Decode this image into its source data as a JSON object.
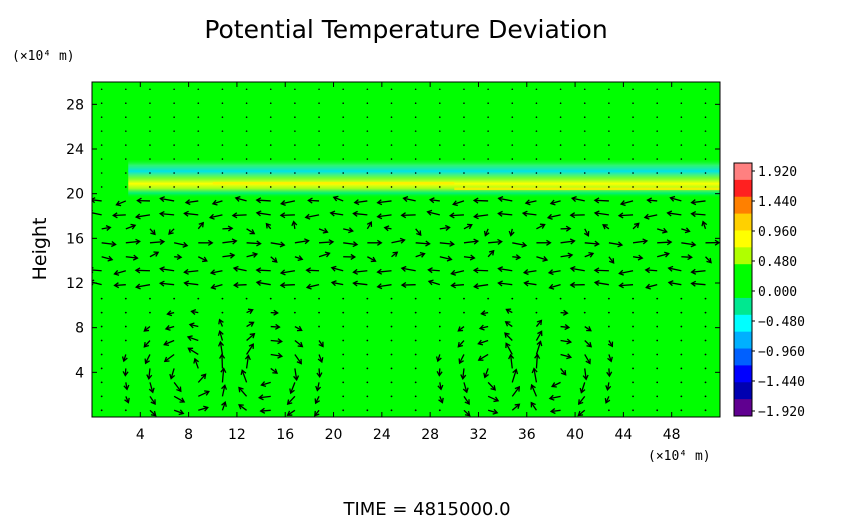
{
  "chart_data": {
    "type": "heatmap",
    "title": "Potential Temperature Deviation",
    "ylabel": "Height",
    "y_unit_label": "(×10⁴ m)",
    "x_unit_label": "(×10⁴ m)",
    "time_label": "TIME  =  4815000.0",
    "xlim": [
      0,
      52
    ],
    "ylim": [
      0,
      30
    ],
    "x_ticks": [
      4,
      8,
      12,
      16,
      20,
      24,
      28,
      32,
      36,
      40,
      44,
      48
    ],
    "y_ticks": [
      4,
      8,
      12,
      16,
      20,
      24,
      28
    ],
    "background_value": 0.0,
    "colorbar": {
      "ticks": [
        "1.920",
        "1.440",
        "0.960",
        "0.480",
        "0.000",
        "−0.480",
        "−0.960",
        "−1.440",
        "−1.920"
      ],
      "max": 1.92,
      "min": -1.92,
      "colors": [
        "#ff8080",
        "#ff2020",
        "#ff8000",
        "#ffd000",
        "#ffff00",
        "#b0ff00",
        "#00ff00",
        "#00ff00",
        "#00e890",
        "#00ffff",
        "#00b0ff",
        "#0060ff",
        "#0000ff",
        "#0000b0",
        "#600090"
      ]
    },
    "features": [
      {
        "name": "warm band",
        "y_center": 20.9,
        "x_start": 2,
        "x_end": 52,
        "value": 0.7
      },
      {
        "name": "cool band",
        "y_center": 21.6,
        "x_start": 2,
        "x_end": 52,
        "value": -0.35
      },
      {
        "name": "circulation cell",
        "x_center": 8,
        "y_center": 4
      },
      {
        "name": "circulation cell",
        "x_center": 14.5,
        "y_center": 4
      },
      {
        "name": "circulation cell",
        "x_center": 34,
        "y_center": 4
      },
      {
        "name": "circulation cell",
        "x_center": 38,
        "y_center": 4
      }
    ],
    "legend": "right"
  }
}
